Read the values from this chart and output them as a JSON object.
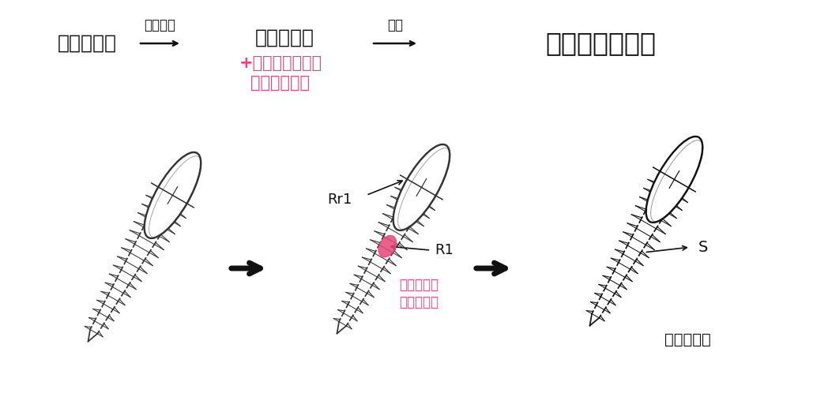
{
  "bg_color": "#ffffff",
  "text_color": "#222222",
  "pink_color": "#e8457a",
  "black_color": "#111111",
  "top_row": {
    "box1_text": "良品データ",
    "arrow1_label": "ペイント",
    "box2_line1": "良品データ",
    "box2_line2": "+ペイントによる",
    "box2_line3": "生成領域指定",
    "arrow2_label": "生成",
    "box3_text": "合成不良データ"
  },
  "bottom_row": {
    "screw2_label_rr1": "Rr1",
    "screw2_label_r1": "R1",
    "screw2_sublabel_line1": "不良を生成",
    "screw2_sublabel_line2": "したい領域",
    "screw3_label_s": "S",
    "screw3_sublabel": "合成不良部"
  },
  "figsize": [
    10.29,
    4.98
  ],
  "dpi": 100
}
